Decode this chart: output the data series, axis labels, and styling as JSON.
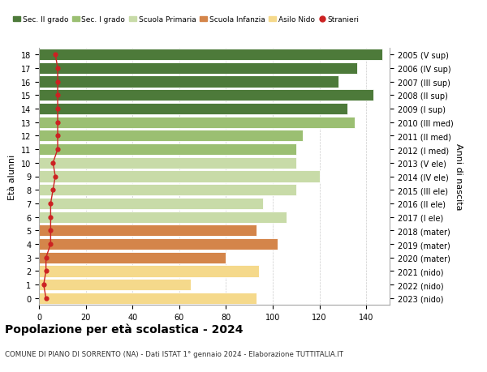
{
  "ages": [
    0,
    1,
    2,
    3,
    4,
    5,
    6,
    7,
    8,
    9,
    10,
    11,
    12,
    13,
    14,
    15,
    16,
    17,
    18
  ],
  "right_labels": [
    "2023 (nido)",
    "2022 (nido)",
    "2021 (nido)",
    "2020 (mater)",
    "2019 (mater)",
    "2018 (mater)",
    "2017 (I ele)",
    "2016 (II ele)",
    "2015 (III ele)",
    "2014 (IV ele)",
    "2013 (V ele)",
    "2012 (I med)",
    "2011 (II med)",
    "2010 (III med)",
    "2009 (I sup)",
    "2008 (II sup)",
    "2007 (III sup)",
    "2006 (IV sup)",
    "2005 (V sup)"
  ],
  "bar_values": [
    93,
    65,
    94,
    80,
    102,
    93,
    106,
    96,
    110,
    120,
    110,
    110,
    113,
    135,
    132,
    143,
    128,
    136,
    147
  ],
  "bar_colors": [
    "#f5d98b",
    "#f5d98b",
    "#f5d98b",
    "#d4854a",
    "#d4854a",
    "#d4854a",
    "#c8dba8",
    "#c8dba8",
    "#c8dba8",
    "#c8dba8",
    "#c8dba8",
    "#9bbf72",
    "#9bbf72",
    "#9bbf72",
    "#4d7a3a",
    "#4d7a3a",
    "#4d7a3a",
    "#4d7a3a",
    "#4d7a3a"
  ],
  "stranieri_values": [
    3,
    2,
    3,
    3,
    5,
    5,
    5,
    5,
    6,
    7,
    6,
    8,
    8,
    8,
    8,
    8,
    8,
    8,
    7
  ],
  "legend_labels": [
    "Sec. II grado",
    "Sec. I grado",
    "Scuola Primaria",
    "Scuola Infanzia",
    "Asilo Nido",
    "Stranieri"
  ],
  "legend_colors": [
    "#4d7a3a",
    "#9bbf72",
    "#c8dba8",
    "#d4854a",
    "#f5d98b",
    "#cc2222"
  ],
  "title": "Popolazione per età scolastica - 2024",
  "subtitle": "COMUNE DI PIANO DI SORRENTO (NA) - Dati ISTAT 1° gennaio 2024 - Elaborazione TUTTITALIA.IT",
  "ylabel_left": "Età alunni",
  "ylabel_right": "Anni di nascita",
  "xlim": [
    0,
    150
  ],
  "xticks": [
    0,
    20,
    40,
    60,
    80,
    100,
    120,
    140
  ],
  "background_color": "#ffffff",
  "grid_color": "#cccccc"
}
